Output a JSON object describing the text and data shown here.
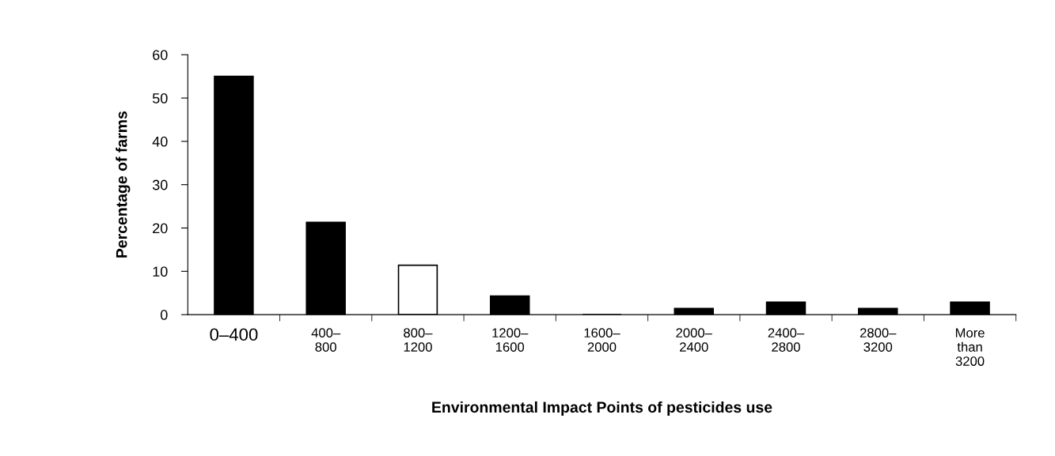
{
  "chart_data": {
    "type": "bar",
    "xlabel": "Environmental Impact Points of pesticides use",
    "ylabel": "Percentage of farms",
    "categories": [
      "0–400",
      "400–\n800",
      "800–\n1200",
      "1200–\n1600",
      "1600–\n2000",
      "2000–\n2400",
      "2400–\n2800",
      "2800–\n3200",
      "More\nthan\n3200"
    ],
    "values": [
      55,
      21.3,
      11.4,
      4.3,
      0,
      1.4,
      2.9,
      1.4,
      2.9
    ],
    "colors": [
      "#000000",
      "#000000",
      "#ffffff",
      "#000000",
      "#000000",
      "#000000",
      "#000000",
      "#000000",
      "#000000"
    ],
    "ylim": [
      0,
      60
    ],
    "yticks": [
      0,
      10,
      20,
      30,
      40,
      50,
      60
    ],
    "grid": false,
    "legend": false
  }
}
